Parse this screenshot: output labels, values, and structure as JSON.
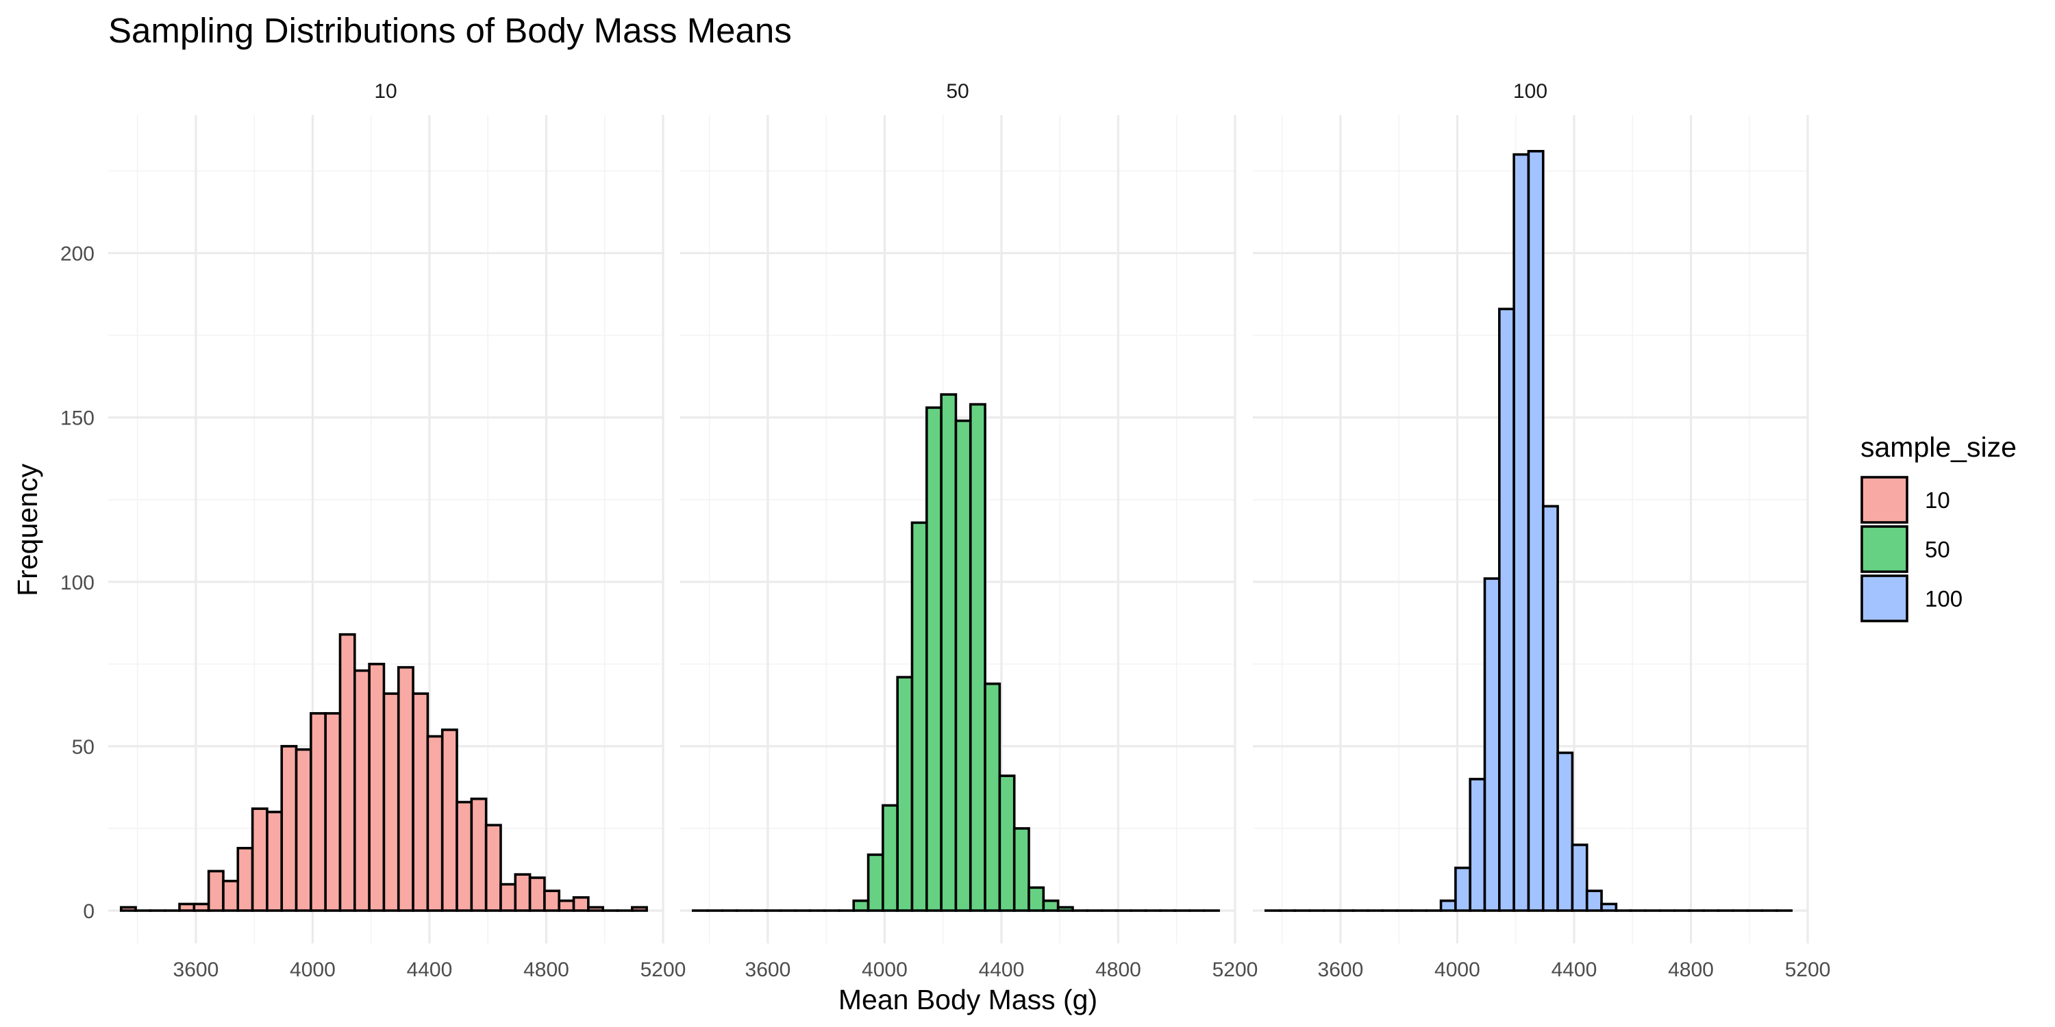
{
  "chart_data": {
    "type": "bar",
    "subtype": "faceted-histogram",
    "title": "Sampling Distributions of Body Mass Means",
    "xlabel": "Mean Body Mass (g)",
    "ylabel": "Frequency",
    "xlim": [
      3300,
      5200
    ],
    "ylim": [
      -10,
      242
    ],
    "x_ticks": [
      3600,
      4000,
      4400,
      4800,
      5200
    ],
    "y_ticks": [
      0,
      50,
      100,
      150,
      200
    ],
    "grid": true,
    "bin_start": 3344,
    "bin_width": 50,
    "legend": {
      "title": "sample_size",
      "position": "right",
      "entries": [
        {
          "label": "10",
          "color": "#F8A9A3"
        },
        {
          "label": "50",
          "color": "#66D182"
        },
        {
          "label": "100",
          "color": "#A2C3FF"
        }
      ]
    },
    "facets": [
      {
        "label": "10",
        "color": "#F8A9A3",
        "counts": [
          1,
          0,
          0,
          0,
          2,
          2,
          12,
          9,
          19,
          31,
          30,
          50,
          49,
          60,
          60,
          84,
          73,
          75,
          66,
          74,
          66,
          53,
          55,
          33,
          34,
          26,
          8,
          11,
          10,
          6,
          3,
          4,
          1,
          0,
          0,
          1
        ]
      },
      {
        "label": "50",
        "color": "#66D182",
        "counts": [
          0,
          0,
          0,
          0,
          0,
          0,
          0,
          0,
          0,
          0,
          0,
          3,
          17,
          32,
          71,
          118,
          153,
          157,
          149,
          154,
          69,
          41,
          25,
          7,
          3,
          1,
          0,
          0,
          0,
          0,
          0,
          0,
          0,
          0,
          0,
          0
        ]
      },
      {
        "label": "100",
        "color": "#A2C3FF",
        "counts": [
          0,
          0,
          0,
          0,
          0,
          0,
          0,
          0,
          0,
          0,
          0,
          0,
          3,
          13,
          40,
          101,
          183,
          230,
          231,
          123,
          48,
          20,
          6,
          2,
          0,
          0,
          0,
          0,
          0,
          0,
          0,
          0,
          0,
          0,
          0,
          0
        ]
      }
    ]
  }
}
